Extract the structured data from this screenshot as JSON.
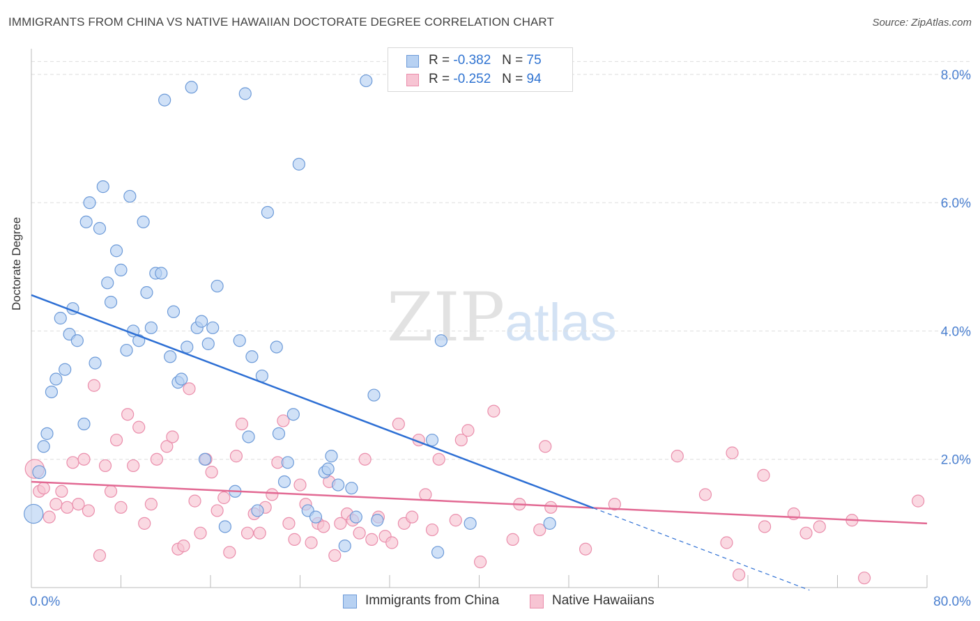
{
  "title": "IMMIGRANTS FROM CHINA VS NATIVE HAWAIIAN DOCTORATE DEGREE CORRELATION CHART",
  "source": "Source: ZipAtlas.com",
  "watermark": {
    "zip": "ZIP",
    "atlas": "atlas"
  },
  "legend": {
    "r_label": "R =",
    "n_label": "N =",
    "rows": [
      {
        "r": "-0.382",
        "n": "75"
      },
      {
        "r": "-0.252",
        "n": "94"
      }
    ]
  },
  "colors": {
    "blue_fill": "#b7d1f2",
    "blue_stroke": "#6c9ad8",
    "blue_line": "#2d6fd4",
    "pink_fill": "#f7c4d3",
    "pink_stroke": "#ea8dab",
    "pink_line": "#e26993",
    "tick_label": "#4a7fcf",
    "grid": "#dddddd"
  },
  "chart_data": {
    "type": "scatter",
    "title": "IMMIGRANTS FROM CHINA VS NATIVE HAWAIIAN DOCTORATE DEGREE CORRELATION CHART",
    "xlabel": "",
    "ylabel": "Doctorate Degree",
    "xlim": [
      0,
      80
    ],
    "ylim": [
      0,
      8.4
    ],
    "x_tick_labels": [
      "0.0%",
      "80.0%"
    ],
    "y_ticks": [
      2.0,
      4.0,
      6.0,
      8.0
    ],
    "y_tick_labels": [
      "2.0%",
      "4.0%",
      "6.0%",
      "8.0%"
    ],
    "grid": true,
    "legend_position": "top-center",
    "series": [
      {
        "name": "Immigrants from China",
        "color": "#6c9ad8",
        "trend": {
          "x": [
            0,
            50.2
          ],
          "y": [
            4.56,
            1.24
          ],
          "dashed_to": {
            "x": 69.5,
            "y": -0.04
          }
        },
        "points": [
          [
            0.2,
            1.15,
            16
          ],
          [
            0.7,
            1.8,
            11
          ],
          [
            1.1,
            2.2,
            10
          ],
          [
            1.4,
            2.4,
            10
          ],
          [
            1.8,
            3.05,
            10
          ],
          [
            2.2,
            3.25,
            10
          ],
          [
            2.6,
            4.2,
            10
          ],
          [
            3.0,
            3.4,
            10
          ],
          [
            3.4,
            3.95,
            10
          ],
          [
            3.7,
            4.35,
            10
          ],
          [
            4.1,
            3.85,
            10
          ],
          [
            4.7,
            2.55,
            10
          ],
          [
            4.9,
            5.7,
            10
          ],
          [
            5.2,
            6.0,
            10
          ],
          [
            5.7,
            3.5,
            10
          ],
          [
            6.1,
            5.6,
            10
          ],
          [
            6.4,
            6.25,
            10
          ],
          [
            6.8,
            4.75,
            10
          ],
          [
            7.1,
            4.45,
            10
          ],
          [
            7.6,
            5.25,
            10
          ],
          [
            8.0,
            4.95,
            10
          ],
          [
            8.5,
            3.7,
            10
          ],
          [
            8.8,
            6.1,
            10
          ],
          [
            9.1,
            4.0,
            10
          ],
          [
            9.6,
            3.85,
            10
          ],
          [
            10.0,
            5.7,
            10
          ],
          [
            10.3,
            4.6,
            10
          ],
          [
            10.7,
            4.05,
            10
          ],
          [
            11.1,
            4.9,
            10
          ],
          [
            11.6,
            4.9,
            10
          ],
          [
            11.9,
            7.6,
            10
          ],
          [
            12.4,
            3.6,
            10
          ],
          [
            12.7,
            4.3,
            10
          ],
          [
            13.1,
            3.2,
            10
          ],
          [
            13.4,
            3.25,
            10
          ],
          [
            13.9,
            3.75,
            10
          ],
          [
            14.3,
            7.8,
            10
          ],
          [
            14.8,
            4.05,
            10
          ],
          [
            15.2,
            4.15,
            10
          ],
          [
            15.5,
            2.0,
            10
          ],
          [
            15.8,
            3.8,
            10
          ],
          [
            16.2,
            4.05,
            10
          ],
          [
            16.6,
            4.7,
            10
          ],
          [
            17.3,
            0.95,
            10
          ],
          [
            18.2,
            1.5,
            10
          ],
          [
            18.6,
            3.85,
            10
          ],
          [
            19.1,
            7.7,
            10
          ],
          [
            19.4,
            2.35,
            10
          ],
          [
            19.7,
            3.6,
            10
          ],
          [
            20.2,
            1.2,
            10
          ],
          [
            20.6,
            3.3,
            10
          ],
          [
            21.1,
            5.85,
            10
          ],
          [
            21.9,
            3.75,
            10
          ],
          [
            22.1,
            2.4,
            10
          ],
          [
            22.6,
            1.65,
            10
          ],
          [
            22.9,
            1.95,
            10
          ],
          [
            23.4,
            2.7,
            10
          ],
          [
            23.9,
            6.6,
            10
          ],
          [
            24.7,
            1.2,
            10
          ],
          [
            25.4,
            1.1,
            10
          ],
          [
            26.2,
            1.8,
            10
          ],
          [
            26.5,
            1.85,
            10
          ],
          [
            26.8,
            2.05,
            10
          ],
          [
            27.4,
            1.6,
            10
          ],
          [
            28.0,
            0.65,
            10
          ],
          [
            28.6,
            1.55,
            10
          ],
          [
            29.0,
            1.1,
            10
          ],
          [
            29.9,
            7.9,
            10
          ],
          [
            30.6,
            3.0,
            10
          ],
          [
            30.9,
            1.05,
            10
          ],
          [
            35.8,
            2.3,
            10
          ],
          [
            36.3,
            0.55,
            10
          ],
          [
            36.6,
            3.85,
            10
          ],
          [
            39.2,
            1.0,
            10
          ],
          [
            46.3,
            1.0,
            10
          ]
        ]
      },
      {
        "name": "Native Hawaiians",
        "color": "#ea8dab",
        "trend": {
          "x": [
            0,
            80
          ],
          "y": [
            1.65,
            1.0
          ]
        },
        "points": [
          [
            0.3,
            1.85,
            16
          ],
          [
            0.7,
            1.5,
            10
          ],
          [
            1.1,
            1.55,
            10
          ],
          [
            1.6,
            1.1,
            10
          ],
          [
            2.2,
            1.3,
            10
          ],
          [
            2.7,
            1.5,
            10
          ],
          [
            3.2,
            1.25,
            10
          ],
          [
            3.7,
            1.95,
            10
          ],
          [
            4.2,
            1.3,
            10
          ],
          [
            4.7,
            2.0,
            10
          ],
          [
            5.1,
            1.2,
            10
          ],
          [
            5.6,
            3.15,
            10
          ],
          [
            6.1,
            0.5,
            10
          ],
          [
            6.6,
            1.9,
            10
          ],
          [
            7.1,
            1.5,
            10
          ],
          [
            7.6,
            2.3,
            10
          ],
          [
            8.0,
            1.25,
            10
          ],
          [
            8.6,
            2.7,
            10
          ],
          [
            9.1,
            1.9,
            10
          ],
          [
            9.6,
            2.5,
            10
          ],
          [
            10.1,
            1.0,
            10
          ],
          [
            10.7,
            1.3,
            10
          ],
          [
            11.2,
            2.0,
            10
          ],
          [
            12.1,
            2.2,
            10
          ],
          [
            12.6,
            2.35,
            10
          ],
          [
            13.1,
            0.6,
            10
          ],
          [
            13.6,
            0.65,
            10
          ],
          [
            14.1,
            3.1,
            10
          ],
          [
            14.6,
            1.35,
            10
          ],
          [
            15.1,
            0.85,
            10
          ],
          [
            15.6,
            2.0,
            10
          ],
          [
            16.1,
            1.8,
            10
          ],
          [
            16.6,
            1.2,
            10
          ],
          [
            17.2,
            1.4,
            10
          ],
          [
            17.7,
            0.55,
            10
          ],
          [
            18.3,
            2.05,
            10
          ],
          [
            18.8,
            2.55,
            10
          ],
          [
            19.3,
            0.85,
            10
          ],
          [
            19.9,
            1.15,
            10
          ],
          [
            20.4,
            0.85,
            10
          ],
          [
            20.9,
            1.25,
            10
          ],
          [
            21.5,
            1.45,
            10
          ],
          [
            22.0,
            1.95,
            10
          ],
          [
            22.5,
            2.6,
            10
          ],
          [
            23.0,
            1.0,
            10
          ],
          [
            23.5,
            0.75,
            10
          ],
          [
            24.0,
            1.6,
            10
          ],
          [
            24.5,
            1.3,
            10
          ],
          [
            25.0,
            0.7,
            10
          ],
          [
            25.6,
            1.0,
            10
          ],
          [
            26.1,
            0.95,
            10
          ],
          [
            26.6,
            1.65,
            10
          ],
          [
            27.1,
            0.5,
            10
          ],
          [
            27.6,
            1.0,
            10
          ],
          [
            28.2,
            1.15,
            10
          ],
          [
            28.7,
            1.05,
            10
          ],
          [
            29.3,
            0.85,
            10
          ],
          [
            29.8,
            2.0,
            10
          ],
          [
            30.4,
            0.75,
            10
          ],
          [
            31.0,
            1.1,
            10
          ],
          [
            31.6,
            0.8,
            10
          ],
          [
            32.2,
            0.7,
            10
          ],
          [
            32.8,
            2.55,
            10
          ],
          [
            33.3,
            1.0,
            10
          ],
          [
            34.0,
            1.1,
            10
          ],
          [
            34.6,
            2.3,
            10
          ],
          [
            35.2,
            1.45,
            10
          ],
          [
            35.8,
            0.9,
            10
          ],
          [
            36.4,
            2.0,
            10
          ],
          [
            37.9,
            1.05,
            10
          ],
          [
            38.4,
            2.3,
            10
          ],
          [
            39.0,
            2.45,
            10
          ],
          [
            40.1,
            0.4,
            10
          ],
          [
            41.3,
            2.75,
            10
          ],
          [
            43.0,
            0.75,
            10
          ],
          [
            43.6,
            1.3,
            10
          ],
          [
            45.4,
            0.9,
            10
          ],
          [
            45.9,
            2.2,
            10
          ],
          [
            46.4,
            1.25,
            10
          ],
          [
            49.5,
            0.6,
            10
          ],
          [
            52.1,
            1.3,
            10
          ],
          [
            57.7,
            2.05,
            10
          ],
          [
            60.2,
            1.45,
            10
          ],
          [
            62.1,
            0.7,
            10
          ],
          [
            62.6,
            2.1,
            10
          ],
          [
            63.2,
            0.2,
            10
          ],
          [
            65.4,
            1.75,
            10
          ],
          [
            65.5,
            0.95,
            10
          ],
          [
            68.1,
            1.15,
            10
          ],
          [
            69.2,
            0.85,
            10
          ],
          [
            70.4,
            0.95,
            10
          ],
          [
            73.3,
            1.05,
            10
          ],
          [
            74.4,
            0.15,
            10
          ],
          [
            79.2,
            1.35,
            10
          ]
        ]
      }
    ]
  }
}
